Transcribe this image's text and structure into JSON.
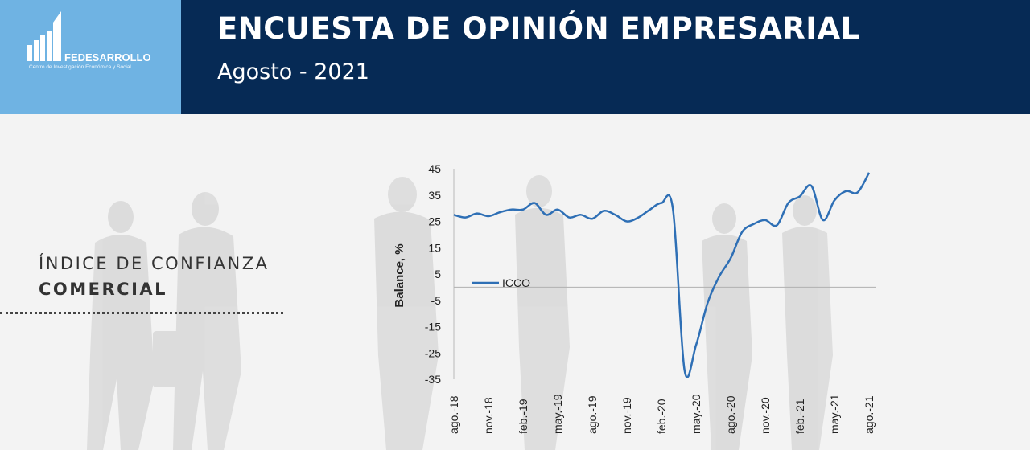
{
  "header": {
    "title": "ENCUESTA DE OPINIÓN EMPRESARIAL",
    "subtitle": "Agosto - 2021"
  },
  "logo": {
    "name": "FEDESARROLLO",
    "tagline": "Centro de Investigación Económica y Social"
  },
  "side_panel": {
    "line1": "ÍNDICE DE CONFIANZA",
    "line2": "COMERCIAL"
  },
  "colors": {
    "header_bg": "#062a55",
    "logo_bg": "#6fb3e3",
    "series": "#2e6fb5"
  },
  "chart_data": {
    "type": "line",
    "title": "",
    "xlabel": "",
    "ylabel": "Balance, %",
    "ylim": [
      -35,
      45
    ],
    "yticks": [
      45,
      35,
      25,
      15,
      5,
      -5,
      -15,
      -25,
      -35
    ],
    "grid": false,
    "zero_line": true,
    "legend": "left, inside plot",
    "x_tick_labels": [
      "ago.-18",
      "nov.-18",
      "feb.-19",
      "may.-19",
      "ago.-19",
      "nov.-19",
      "feb.-20",
      "may.-20",
      "ago.-20",
      "nov.-20",
      "feb.-21",
      "may.-21",
      "ago.-21"
    ],
    "x": [
      "ago.-18",
      "sep.-18",
      "oct.-18",
      "nov.-18",
      "dic.-18",
      "ene.-19",
      "feb.-19",
      "mar.-19",
      "abr.-19",
      "may.-19",
      "jun.-19",
      "jul.-19",
      "ago.-19",
      "sep.-19",
      "oct.-19",
      "nov.-19",
      "dic.-19",
      "ene.-20",
      "feb.-20",
      "mar.-20",
      "abr.-20",
      "may.-20",
      "jun.-20",
      "jul.-20",
      "ago.-20",
      "sep.-20",
      "oct.-20",
      "nov.-20",
      "dic.-20",
      "ene.-21",
      "feb.-21",
      "mar.-21",
      "abr.-21",
      "may.-21",
      "jun.-21",
      "jul.-21",
      "ago.-21"
    ],
    "series": [
      {
        "name": "ICCO",
        "values": [
          27.5,
          26.5,
          28,
          27,
          28.5,
          29.5,
          29.5,
          32,
          27.5,
          29.5,
          26.5,
          27.5,
          26,
          29,
          27.5,
          25,
          26.5,
          29.5,
          32,
          29.5,
          -31.5,
          -22,
          -6,
          4,
          11,
          21,
          24,
          25.5,
          23.5,
          32,
          34.5,
          38.5,
          25.5,
          33,
          36.5,
          36,
          43.5
        ]
      }
    ]
  }
}
